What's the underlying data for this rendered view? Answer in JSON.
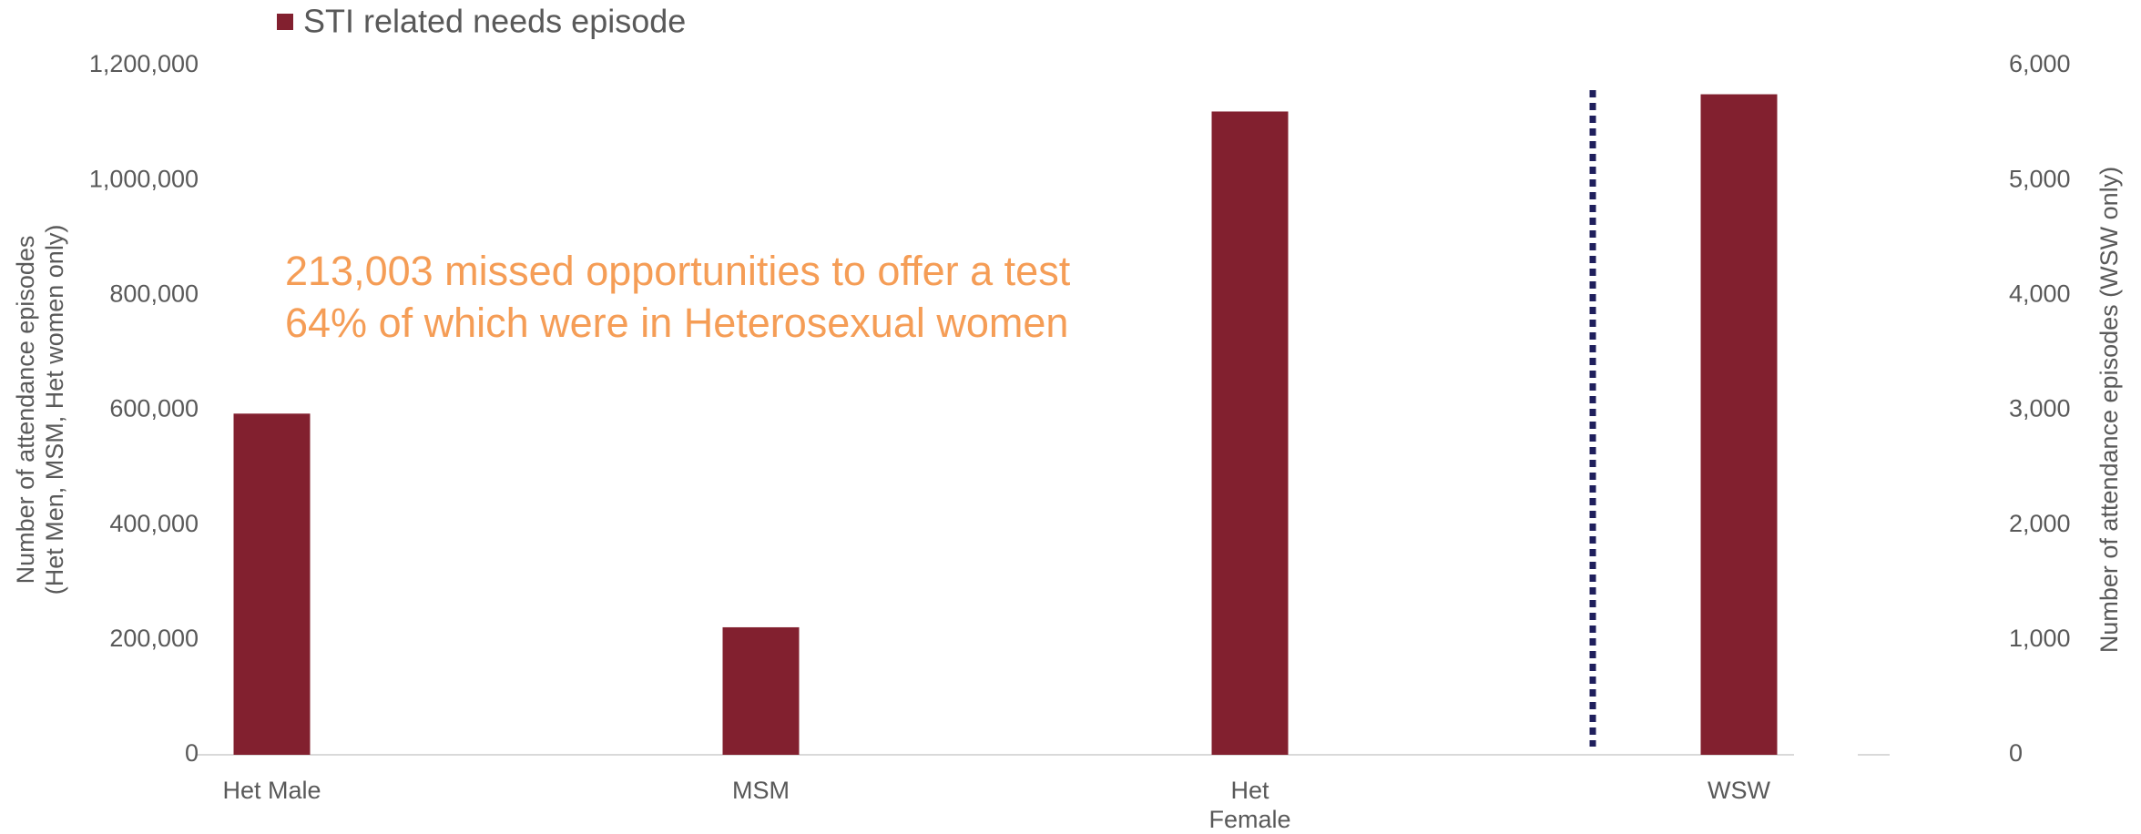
{
  "chart_data": {
    "type": "bar",
    "categories": [
      "Het Male",
      "MSM",
      "Het Female",
      "WSW"
    ],
    "series": [
      {
        "name": "STI related needs episode",
        "color": "#82202f",
        "values": [
          594000,
          222000,
          1120000,
          null
        ]
      },
      {
        "name": "STI related needs episode",
        "color": "#82202f",
        "axis": "y2",
        "values": [
          null,
          null,
          null,
          5750
        ]
      }
    ],
    "ylim": [
      0,
      1200000
    ],
    "yticks": [
      0,
      {
        "value": 200000,
        "label": "200,000"
      },
      {
        "value": 400000,
        "label": "400,000"
      },
      {
        "value": 600000,
        "label": "600,000"
      },
      {
        "value": 800000,
        "label": "800,000"
      },
      {
        "value": 1000000,
        "label": "1,000,000"
      },
      {
        "value": 1200000,
        "label": "1,200,000"
      }
    ],
    "y2lim": [
      0,
      6000
    ],
    "y2ticks": [
      0,
      {
        "value": 1000,
        "label": "1,000"
      },
      {
        "value": 2000,
        "label": "2,000"
      },
      {
        "value": 3000,
        "label": "3,000"
      },
      {
        "value": 4000,
        "label": "4,000"
      },
      {
        "value": 5000,
        "label": "5,000"
      },
      {
        "value": 6000,
        "label": "6,000"
      }
    ],
    "ylabel": [
      "Number of attendance episodes",
      "(Het Men, MSM, Het women only)"
    ],
    "y2label": "Number of attendance episodes  (WSW only)",
    "annotations": [
      "213,003 missed opportunities to offer a test",
      "64% of which were in Heterosexual women"
    ]
  }
}
